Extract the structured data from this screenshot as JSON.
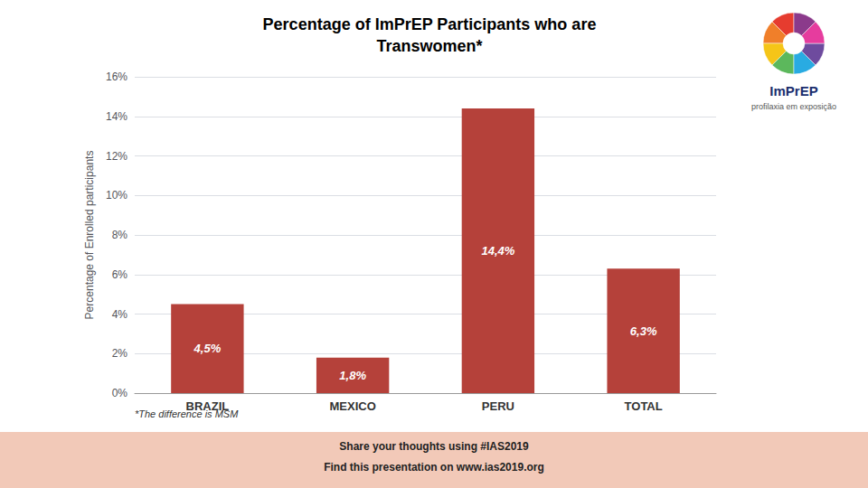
{
  "chart_data": {
    "type": "bar",
    "title": "Percentage of ImPrEP Participants who are\nTranswomen*",
    "ylabel": "Percentage of Enrolled participants",
    "categories": [
      "BRAZIL",
      "MEXICO",
      "PERU",
      "TOTAL"
    ],
    "values": [
      4.5,
      1.8,
      14.4,
      6.3
    ],
    "value_labels": [
      "4,5%",
      "1,8%",
      "14,4%",
      "6,3%"
    ],
    "data_labels": true,
    "color": "#b5413a",
    "ylim": [
      0,
      16
    ],
    "yticks": [
      {
        "value": 0,
        "label": "0%"
      },
      {
        "value": 2,
        "label": "2%"
      },
      {
        "value": 4,
        "label": "4%"
      },
      {
        "value": 6,
        "label": "6%"
      },
      {
        "value": 8,
        "label": "8%"
      },
      {
        "value": 10,
        "label": "10%"
      },
      {
        "value": 12,
        "label": "12%"
      },
      {
        "value": 14,
        "label": "14%"
      },
      {
        "value": 16,
        "label": "16%"
      }
    ],
    "grid": true,
    "annotations": [
      "*The difference is MSM",
      "Share your thoughts using #IAS2019",
      "Find this presentation on www.ias2019.org",
      "ImPrEP",
      "profilaxia em exposição"
    ]
  }
}
